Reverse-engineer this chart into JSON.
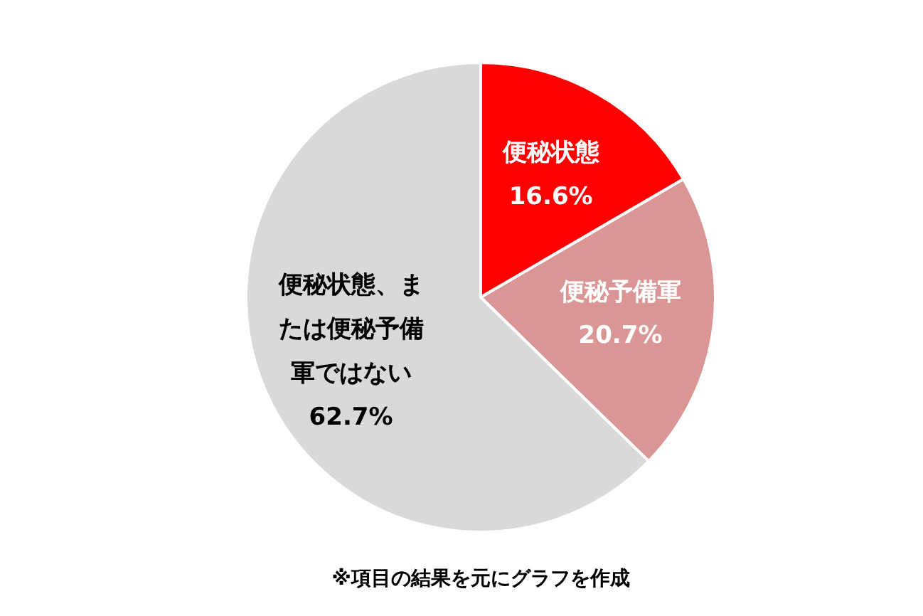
{
  "chart_data": {
    "type": "pie",
    "categories": [
      "便秘状態",
      "便秘予備軍",
      "便秘状態、または便秘予備軍ではない"
    ],
    "values": [
      16.6,
      20.7,
      62.7
    ],
    "colors": [
      "#ff0000",
      "#d99694",
      "#d9d9d9"
    ],
    "value_labels": [
      "16.6%",
      "20.7%",
      "62.7%"
    ],
    "annotations": [
      "※項目の結果を元にグラフを作成"
    ]
  }
}
